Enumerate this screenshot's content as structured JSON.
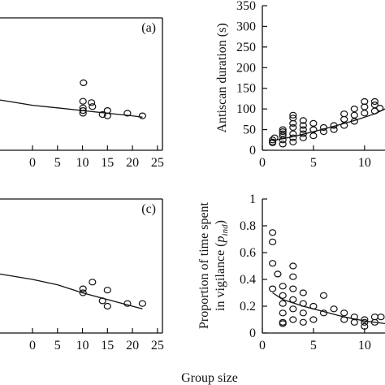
{
  "chart_data": [
    {
      "id": "panel-a",
      "type": "scatter",
      "panel_label": "(a)",
      "xlabel": "",
      "ylabel": "",
      "x_ticks": [
        0,
        5,
        10,
        15,
        20,
        25
      ],
      "x_tick_labels": [
        "0",
        "5",
        "10",
        "15",
        "20",
        "25"
      ],
      "y_ticks": [],
      "y_tick_labels": [],
      "xlim": [
        -6.5,
        26
      ],
      "ylim": [
        0,
        100
      ],
      "points": [
        {
          "x": 10.2,
          "y": 51
        },
        {
          "x": 10.1,
          "y": 37
        },
        {
          "x": 10.1,
          "y": 32
        },
        {
          "x": 11.8,
          "y": 36
        },
        {
          "x": 10.1,
          "y": 30
        },
        {
          "x": 10.1,
          "y": 28
        },
        {
          "x": 12,
          "y": 33
        },
        {
          "x": 14,
          "y": 27
        },
        {
          "x": 15,
          "y": 30
        },
        {
          "x": 15,
          "y": 26
        },
        {
          "x": 19,
          "y": 28
        },
        {
          "x": 22,
          "y": 26
        }
      ],
      "fit": {
        "x": [
          -6.5,
          0,
          5,
          10,
          15,
          20,
          22
        ],
        "y": [
          38,
          34,
          32,
          30,
          28,
          26,
          25
        ]
      }
    },
    {
      "id": "panel-b",
      "type": "scatter",
      "panel_label": "",
      "xlabel": "",
      "ylabel": "Antiscan duration (s)",
      "x_ticks": [
        0,
        5,
        10
      ],
      "x_tick_labels": [
        "0",
        "5",
        "10"
      ],
      "y_ticks": [
        0,
        50,
        100,
        150,
        200,
        250,
        300,
        350
      ],
      "y_tick_labels": [
        "0",
        "50",
        "100",
        "150",
        "200",
        "250",
        "300",
        "350"
      ],
      "xlim": [
        0,
        12
      ],
      "ylim": [
        0,
        350
      ],
      "points": [
        {
          "x": 1,
          "y": 18
        },
        {
          "x": 1,
          "y": 25
        },
        {
          "x": 1,
          "y": 20
        },
        {
          "x": 1.2,
          "y": 30
        },
        {
          "x": 2,
          "y": 15
        },
        {
          "x": 2,
          "y": 25
        },
        {
          "x": 2,
          "y": 35
        },
        {
          "x": 2,
          "y": 40
        },
        {
          "x": 2,
          "y": 45
        },
        {
          "x": 2,
          "y": 50
        },
        {
          "x": 3,
          "y": 20
        },
        {
          "x": 3,
          "y": 30
        },
        {
          "x": 3,
          "y": 40
        },
        {
          "x": 3,
          "y": 55
        },
        {
          "x": 3,
          "y": 65
        },
        {
          "x": 3,
          "y": 78
        },
        {
          "x": 3,
          "y": 85
        },
        {
          "x": 4,
          "y": 30
        },
        {
          "x": 4,
          "y": 40
        },
        {
          "x": 4,
          "y": 50
        },
        {
          "x": 4,
          "y": 60
        },
        {
          "x": 4,
          "y": 72
        },
        {
          "x": 5,
          "y": 35
        },
        {
          "x": 5,
          "y": 50
        },
        {
          "x": 5,
          "y": 65
        },
        {
          "x": 6,
          "y": 45
        },
        {
          "x": 6,
          "y": 55
        },
        {
          "x": 7,
          "y": 50
        },
        {
          "x": 7,
          "y": 60
        },
        {
          "x": 8,
          "y": 60
        },
        {
          "x": 8,
          "y": 75
        },
        {
          "x": 8,
          "y": 88
        },
        {
          "x": 9,
          "y": 70
        },
        {
          "x": 9,
          "y": 85
        },
        {
          "x": 9,
          "y": 100
        },
        {
          "x": 10,
          "y": 90
        },
        {
          "x": 10,
          "y": 105
        },
        {
          "x": 10,
          "y": 118
        },
        {
          "x": 11,
          "y": 95
        },
        {
          "x": 11,
          "y": 110
        },
        {
          "x": 11,
          "y": 118
        },
        {
          "x": 11.5,
          "y": 102
        }
      ],
      "fit": {
        "x": [
          1,
          3,
          5,
          7,
          9,
          11,
          12
        ],
        "y": [
          23,
          33,
          45,
          58,
          72,
          88,
          100
        ]
      }
    },
    {
      "id": "panel-c",
      "type": "scatter",
      "panel_label": "(c)",
      "xlabel": "",
      "ylabel": "",
      "x_ticks": [
        0,
        5,
        10,
        15,
        20,
        25
      ],
      "x_tick_labels": [
        "0",
        "5",
        "10",
        "15",
        "20",
        "25"
      ],
      "y_ticks": [],
      "y_tick_labels": [],
      "xlim": [
        -6.5,
        26
      ],
      "ylim": [
        0,
        100
      ],
      "points": [
        {
          "x": 10.1,
          "y": 33
        },
        {
          "x": 10.1,
          "y": 30
        },
        {
          "x": 12,
          "y": 38
        },
        {
          "x": 14,
          "y": 24
        },
        {
          "x": 15,
          "y": 32
        },
        {
          "x": 15,
          "y": 20
        },
        {
          "x": 19,
          "y": 22
        },
        {
          "x": 22,
          "y": 22
        }
      ],
      "fit": {
        "x": [
          -6.5,
          0,
          5,
          10,
          15,
          20,
          22
        ],
        "y": [
          44,
          40,
          36,
          30,
          25,
          20,
          18
        ]
      }
    },
    {
      "id": "panel-d",
      "type": "scatter",
      "panel_label": "",
      "xlabel": "",
      "ylabel": "Proportion of time spent in vigilance (p_ind)",
      "ylabel_line1": "Proportion of time spent",
      "ylabel_line2_prefix": "in vigilance (",
      "ylabel_line2_var": "p",
      "ylabel_line2_sub": "ind",
      "ylabel_line2_suffix": ")",
      "x_ticks": [
        0,
        5,
        10
      ],
      "x_tick_labels": [
        "0",
        "5",
        "10"
      ],
      "y_ticks": [
        0,
        0.2,
        0.4,
        0.6,
        0.8,
        1
      ],
      "y_tick_labels": [
        "0",
        "0.2",
        "0.4",
        "0.6",
        "0.8",
        "1"
      ],
      "xlim": [
        0,
        12
      ],
      "ylim": [
        0,
        1
      ],
      "points": [
        {
          "x": 1,
          "y": 0.75
        },
        {
          "x": 1,
          "y": 0.68
        },
        {
          "x": 1,
          "y": 0.52
        },
        {
          "x": 1.5,
          "y": 0.44
        },
        {
          "x": 1,
          "y": 0.33
        },
        {
          "x": 2,
          "y": 0.35
        },
        {
          "x": 2,
          "y": 0.28
        },
        {
          "x": 2,
          "y": 0.22
        },
        {
          "x": 2,
          "y": 0.15
        },
        {
          "x": 2,
          "y": 0.08
        },
        {
          "x": 2,
          "y": 0.07
        },
        {
          "x": 3,
          "y": 0.5
        },
        {
          "x": 3,
          "y": 0.42
        },
        {
          "x": 3,
          "y": 0.33
        },
        {
          "x": 3,
          "y": 0.25
        },
        {
          "x": 3,
          "y": 0.18
        },
        {
          "x": 3,
          "y": 0.1
        },
        {
          "x": 4,
          "y": 0.3
        },
        {
          "x": 4,
          "y": 0.22
        },
        {
          "x": 4,
          "y": 0.15
        },
        {
          "x": 4,
          "y": 0.08
        },
        {
          "x": 5,
          "y": 0.2
        },
        {
          "x": 5,
          "y": 0.1
        },
        {
          "x": 6,
          "y": 0.28
        },
        {
          "x": 6,
          "y": 0.15
        },
        {
          "x": 7,
          "y": 0.18
        },
        {
          "x": 8,
          "y": 0.15
        },
        {
          "x": 8,
          "y": 0.1
        },
        {
          "x": 9,
          "y": 0.12
        },
        {
          "x": 9,
          "y": 0.08
        },
        {
          "x": 10,
          "y": 0.1
        },
        {
          "x": 10,
          "y": 0.08
        },
        {
          "x": 10,
          "y": 0.05
        },
        {
          "x": 11,
          "y": 0.12
        },
        {
          "x": 11,
          "y": 0.08
        },
        {
          "x": 11.6,
          "y": 0.12
        }
      ],
      "fit": {
        "x": [
          1,
          2,
          4,
          6,
          8,
          10,
          12
        ],
        "y": [
          0.3,
          0.25,
          0.2,
          0.16,
          0.12,
          0.09,
          0.07
        ]
      }
    }
  ],
  "shared_xlabel": "Group size"
}
